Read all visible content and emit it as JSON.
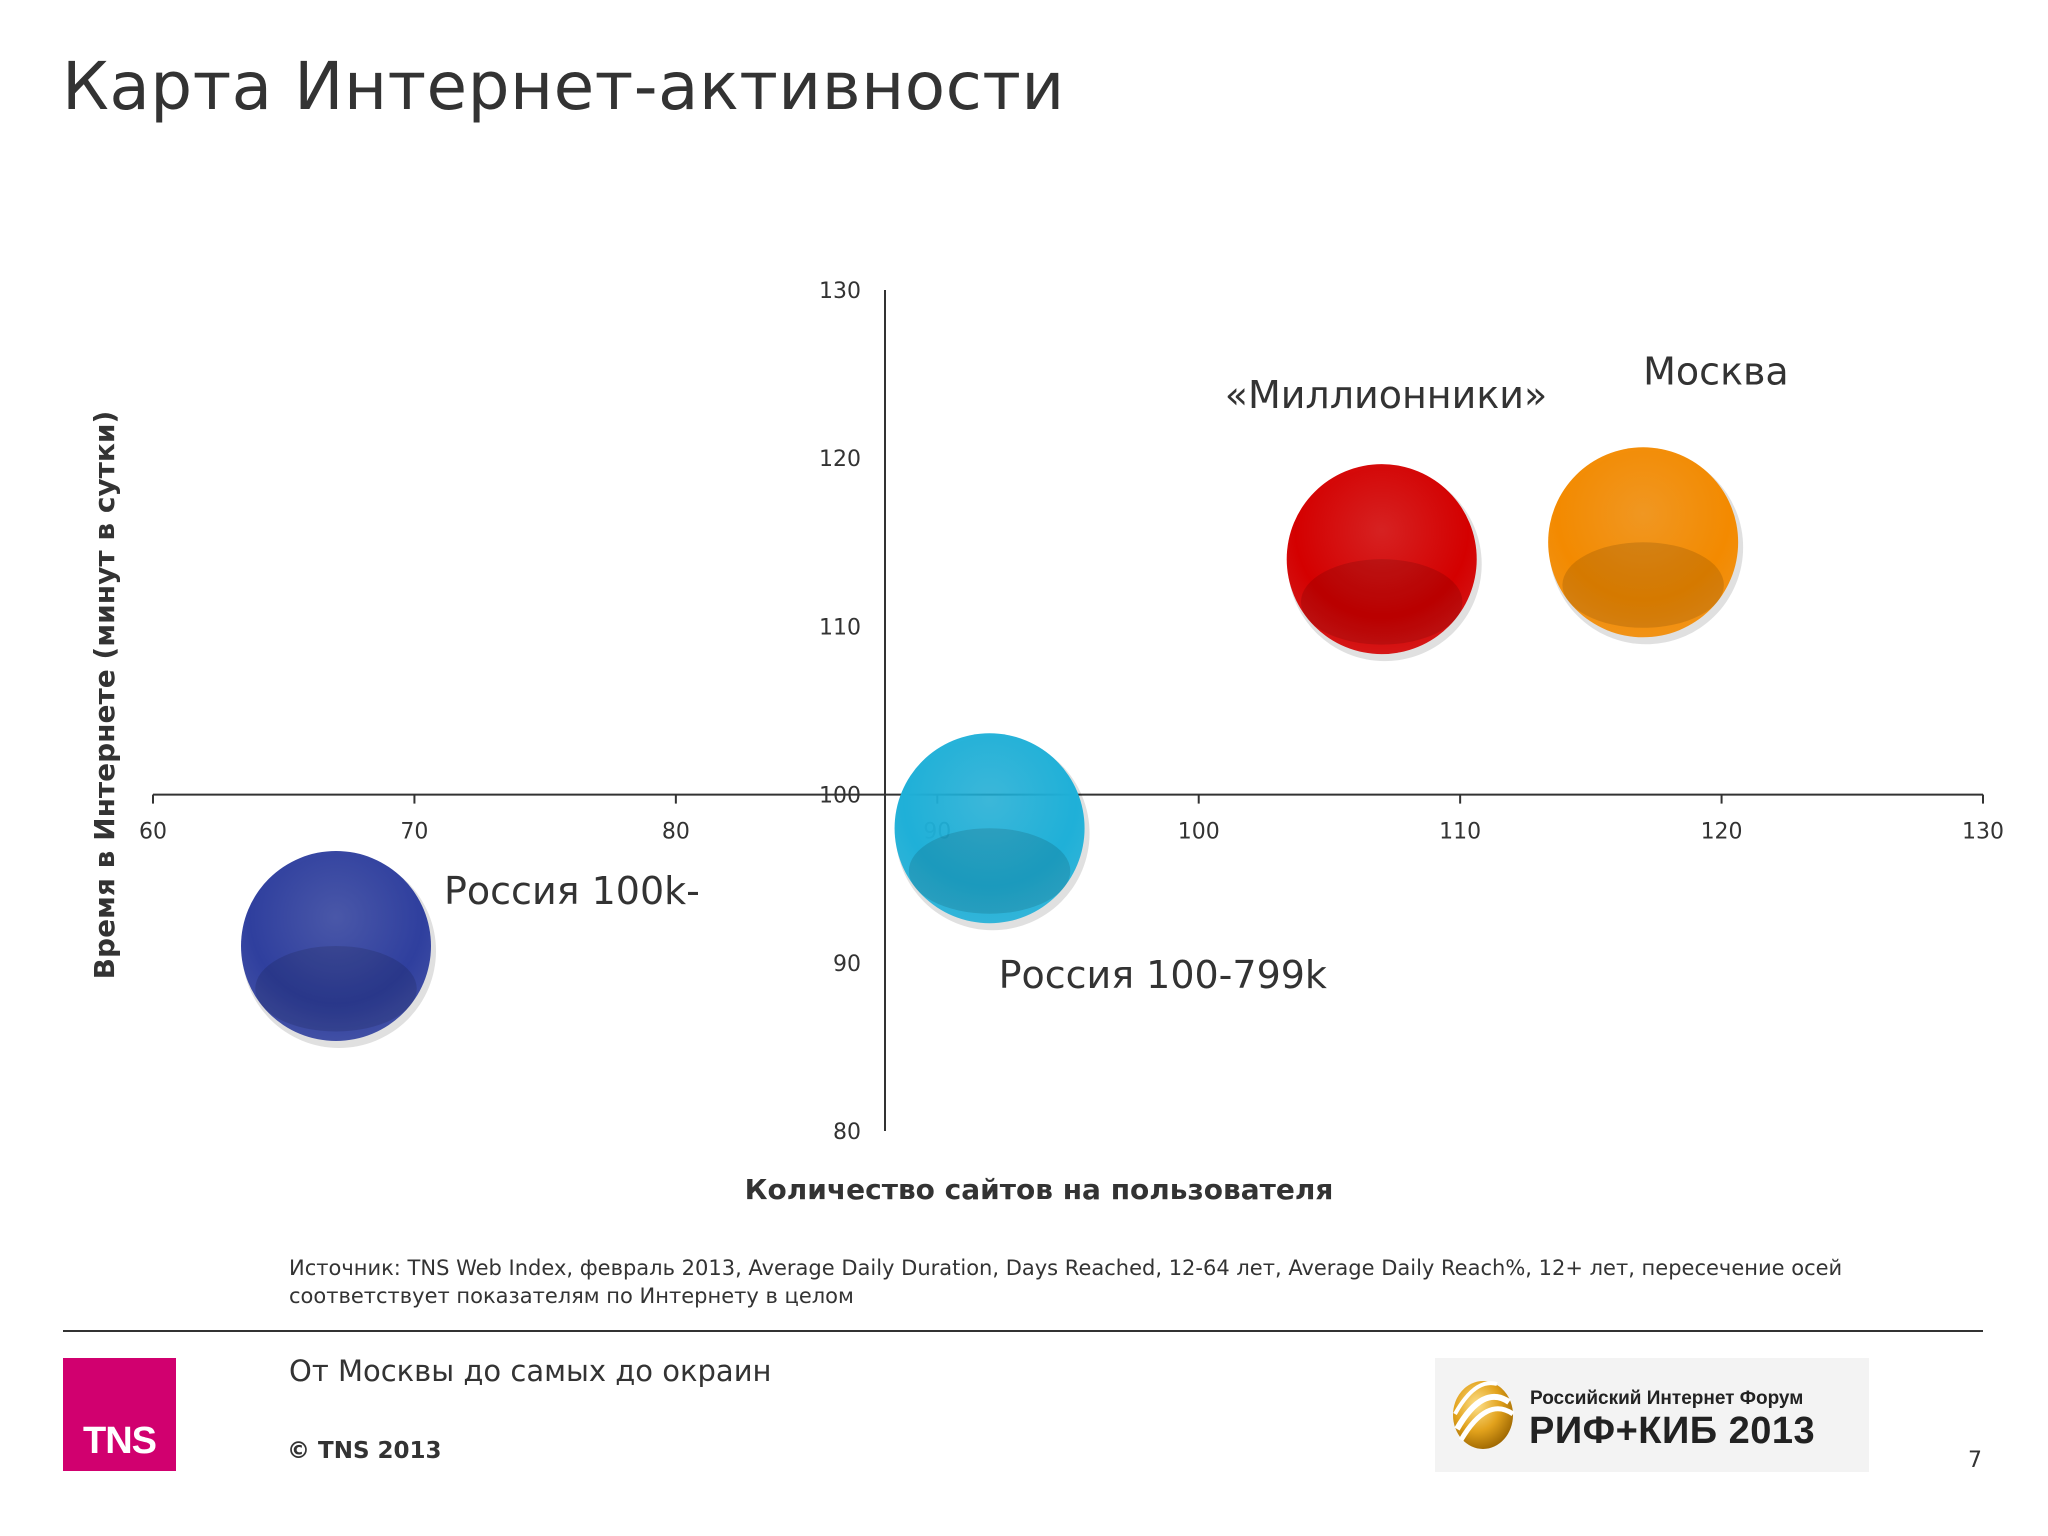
{
  "title": "Карта Интернет-активности",
  "chart_data": {
    "type": "scatter",
    "title": "",
    "xlabel": "Количество сайтов на пользователя",
    "ylabel": "Время в Интернете (минут в сутки)",
    "xlim": [
      60,
      130
    ],
    "ylim": [
      80,
      130
    ],
    "x_ticks": [
      60,
      70,
      80,
      90,
      100,
      110,
      120,
      130
    ],
    "y_ticks": [
      80,
      90,
      100,
      110,
      120,
      130
    ],
    "axes_cross": {
      "x": 88,
      "y": 100
    },
    "grid": false,
    "legend": "none",
    "points": [
      {
        "label": "Россия 100k-",
        "x": 67,
        "y": 91,
        "color": "#2f3f9e"
      },
      {
        "label": "Россия 100-799k",
        "x": 92,
        "y": 98,
        "color": "#1fb0d8"
      },
      {
        "label": "«Миллионники»",
        "x": 107,
        "y": 114,
        "color": "#d40000"
      },
      {
        "label": "Москва",
        "x": 117,
        "y": 115,
        "color": "#f38a00"
      }
    ]
  },
  "source_text": "Источник: TNS Web Index, февраль 2013, Average Daily Duration, Days Reached, 12-64 лет, Average Daily Reach%, 12+ лет, пересечение осей соответствует показателям по Интернету в целом",
  "footer": {
    "subtitle": "От Москвы до самых до окраин",
    "copyright": "© TNS 2013",
    "tns_logo_text": "TNS",
    "rif_logo_line1": "Российский Интернет Форум",
    "rif_logo_line2": "РИФ+КИБ 2013",
    "page_number": "7"
  },
  "colors": {
    "tns_magenta": "#d1006f",
    "axis": "#333333"
  }
}
